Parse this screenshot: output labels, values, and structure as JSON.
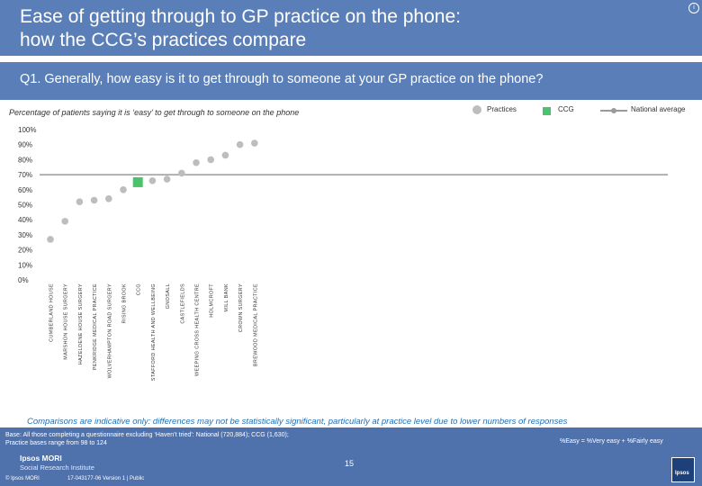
{
  "header": {
    "title": "Ease of getting through to GP practice on the phone:\nhow the CCG’s practices compare",
    "question": "Q1. Generally, how easy is it to get through to someone at your GP practice on the phone?"
  },
  "chart_data": {
    "type": "scatter",
    "subtitle": "Percentage of patients saying it is ‘easy’ to get through to someone on the phone",
    "legend": [
      "Practices",
      "CCG",
      "National average"
    ],
    "legend_placement": "top-right",
    "y_ticks": [
      "100%",
      "90%",
      "80%",
      "70%",
      "60%",
      "50%",
      "40%",
      "30%",
      "20%",
      "10%",
      "0%"
    ],
    "ylim": [
      0,
      100
    ],
    "national_average": 70,
    "categories": [
      "CUMBERLAND HOUSE",
      "MARSHON HOUSE SURGERY",
      "HAZELDENE HOUSE SURGERY",
      "PENKRIDGE MEDICAL PRACTICE",
      "WOLVERHAMPTON ROAD SURGERY",
      "RISING BROOK",
      "CCG",
      "STAFFORD HEALTH AND WELLBEING",
      "GNOSALL",
      "CASTLEFIELDS",
      "WEEPING CROSS HEALTH CENTRE",
      "HOLMCROFT",
      "MILL BANK",
      "CROWN SURGERY",
      "BREWOOD MEDICAL PRACTICE"
    ],
    "values": [
      27,
      39,
      52,
      53,
      54,
      60,
      65,
      66,
      67,
      71,
      78,
      80,
      83,
      90,
      91
    ],
    "point_types": [
      "practice",
      "practice",
      "practice",
      "practice",
      "practice",
      "practice",
      "ccg",
      "practice",
      "practice",
      "practice",
      "practice",
      "practice",
      "practice",
      "practice",
      "practice"
    ],
    "colors": {
      "practice": "#bdbdbd",
      "ccg": "#4cc36a",
      "national": "#9a9a9a"
    }
  },
  "footer": {
    "comparison_note": "Comparisons are indicative only: differences may not be statistically significant, particularly at practice level due to lower numbers of responses",
    "base": "Base: All those completing a questionnaire excluding ‘Haven’t tried’: National (720,884); CCG (1,630);\nPractice bases range from 98 to 124",
    "easy_definition": "%Easy = %Very easy + %Fairly easy",
    "logo_line1": "Ipsos MORI",
    "logo_line2": "Social Research Institute",
    "page_number": "15",
    "copyright": "© Ipsos MORI",
    "job_number": "17-043177-06 Version 1 | Public",
    "ipsos_badge": "Ipsos"
  }
}
